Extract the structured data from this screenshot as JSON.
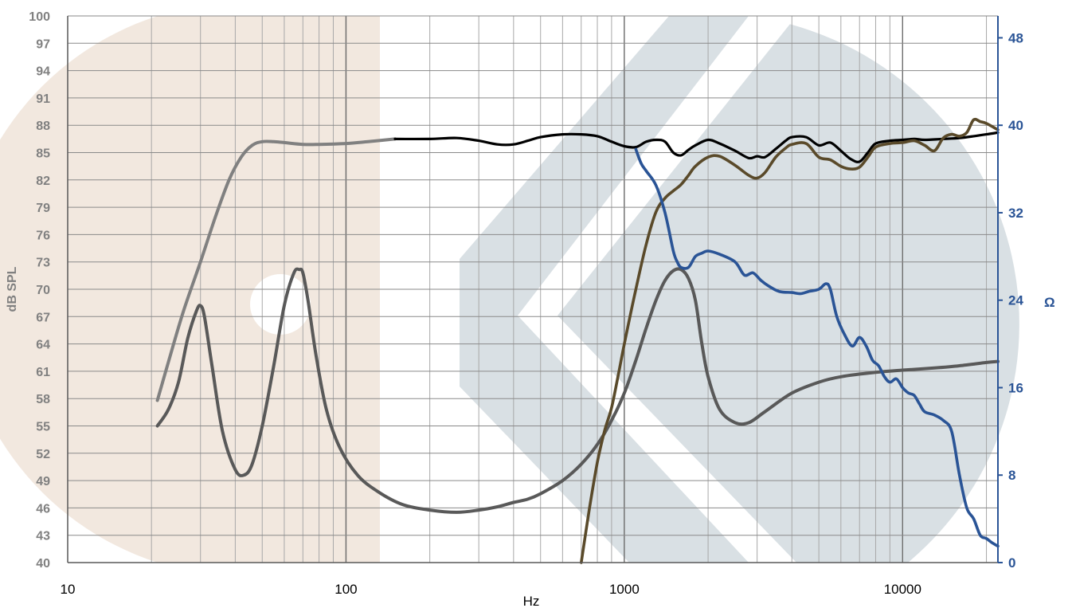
{
  "chart_data": {
    "type": "line",
    "title": "",
    "xlabel": "Hz",
    "ylabel": "dB SPL",
    "y2label": "Ω",
    "xscale": "log",
    "xlim": [
      10,
      22000
    ],
    "ylim": [
      40,
      100
    ],
    "y2lim": [
      0,
      50
    ],
    "x_tick_labels": [
      "10",
      "100",
      "1000",
      "10000"
    ],
    "y_tick_labels": [
      "100",
      "97",
      "94",
      "91",
      "88",
      "85",
      "82",
      "79",
      "76",
      "73",
      "70",
      "67",
      "64",
      "61",
      "58",
      "55",
      "52",
      "49",
      "46",
      "43",
      "40"
    ],
    "y2_tick_labels": [
      "48",
      "40",
      "32",
      "24",
      "16",
      "8",
      "0"
    ],
    "grid": true,
    "legend": "none",
    "colors": {
      "woofer_response": "#808080",
      "woofer_impedance": "#595959",
      "total_response": "#000000",
      "tweeter_response": "#5a4a2a",
      "tweeter_impedance": "#2a5496",
      "watermark_left": "#f2e8df",
      "watermark_right": "#d9e0e4"
    },
    "series": [
      {
        "axis": "left",
        "x": [
          21,
          23,
          26,
          30,
          34,
          38,
          42,
          46,
          50,
          55,
          60,
          70,
          80,
          100,
          120,
          150
        ],
        "y": [
          57.8,
          62,
          67.5,
          73,
          78,
          82,
          84.5,
          85.8,
          86.2,
          86.2,
          86.1,
          85.9,
          85.9,
          86,
          86.2,
          86.5
        ]
      },
      {
        "axis": "right",
        "x": [
          21,
          23,
          25,
          27,
          29,
          30,
          31,
          33,
          36,
          40,
          43,
          46,
          50,
          55,
          60,
          65,
          68,
          70,
          73,
          78,
          85,
          95,
          110,
          130,
          160,
          200,
          250,
          300,
          350,
          400,
          450,
          500,
          600,
          700,
          800,
          900,
          1000,
          1100,
          1200,
          1300,
          1400,
          1500,
          1600,
          1700,
          1800,
          1900,
          2000,
          2200,
          2500,
          2800,
          3200,
          4000,
          5000,
          6000,
          8000,
          10000,
          13000,
          16000,
          20000,
          22000
        ],
        "y": [
          12.5,
          14,
          16.5,
          20.5,
          23,
          23.5,
          22.5,
          18,
          12,
          8.5,
          8,
          9,
          12.5,
          18,
          23.5,
          26.5,
          26.8,
          26.5,
          24,
          19,
          14,
          10.5,
          8,
          6.5,
          5.3,
          4.8,
          4.6,
          4.8,
          5.1,
          5.5,
          5.8,
          6.3,
          7.5,
          9,
          10.8,
          13,
          15.5,
          18.5,
          21.5,
          24,
          25.8,
          26.7,
          26.8,
          26,
          24,
          20,
          17,
          14,
          12.8,
          12.8,
          13.8,
          15.5,
          16.5,
          17,
          17.4,
          17.6,
          17.8,
          18,
          18.3,
          18.4
        ]
      },
      {
        "axis": "left",
        "x": [
          150,
          200,
          250,
          300,
          350,
          400,
          450,
          500,
          600,
          700,
          800,
          900,
          1000,
          1100,
          1200,
          1300,
          1400,
          1500,
          1600,
          1700,
          1800,
          2000,
          2200,
          2500,
          2800,
          3000,
          3200,
          3500,
          3800,
          4000,
          4500,
          5000,
          5500,
          6000,
          6500,
          7000,
          7500,
          8000,
          9000,
          10000,
          11000,
          12000,
          14000,
          16000,
          18000,
          20000,
          22000
        ],
        "y": [
          86.5,
          86.5,
          86.6,
          86.3,
          85.9,
          85.9,
          86.3,
          86.7,
          87,
          87,
          86.8,
          86.2,
          85.7,
          85.6,
          86.2,
          86.4,
          86.2,
          85,
          84.7,
          85.3,
          85.8,
          86.4,
          86,
          85.2,
          84.4,
          84.6,
          84.5,
          85.4,
          86.3,
          86.7,
          86.7,
          85.8,
          86.1,
          85.2,
          84.3,
          84,
          85,
          86,
          86.3,
          86.4,
          86.5,
          86.4,
          86.5,
          86.6,
          86.8,
          87,
          87.2
        ]
      },
      {
        "axis": "left",
        "x": [
          700,
          750,
          800,
          850,
          900,
          950,
          1000,
          1100,
          1200,
          1300,
          1400,
          1500,
          1600,
          1700,
          1800,
          2000,
          2200,
          2500,
          2800,
          3000,
          3200,
          3500,
          3800,
          4000,
          4500,
          5000,
          5500,
          6000,
          6500,
          7000,
          7500,
          8000,
          9000,
          10000,
          11000,
          12000,
          13000,
          14000,
          15000,
          16000,
          17000,
          18000,
          19000,
          20000,
          22000
        ],
        "y": [
          40,
          46,
          51,
          54.5,
          57,
          60.5,
          64,
          70,
          75,
          78.5,
          80,
          80.8,
          81.5,
          82.5,
          83.5,
          84.5,
          84.6,
          83.6,
          82.5,
          82.2,
          82.8,
          84.5,
          85.5,
          85.9,
          86,
          84.5,
          84.2,
          83.5,
          83.2,
          83.4,
          84.5,
          85.6,
          86,
          86.1,
          86.3,
          85.8,
          85.2,
          86.6,
          87,
          86.8,
          87.2,
          88.6,
          88.4,
          88.2,
          87.5
        ]
      },
      {
        "axis": "right",
        "x": [
          1100,
          1150,
          1200,
          1300,
          1400,
          1500,
          1550,
          1600,
          1700,
          1800,
          1900,
          2000,
          2200,
          2500,
          2700,
          2900,
          3100,
          3300,
          3600,
          4000,
          4300,
          4600,
          5000,
          5300,
          5500,
          5800,
          6200,
          6600,
          7000,
          7400,
          7800,
          8200,
          8600,
          9000,
          9500,
          10000,
          10500,
          11000,
          11500,
          12000,
          13000,
          14000,
          15000,
          16000,
          17000,
          18000,
          19000,
          20000,
          21000,
          22000
        ],
        "y": [
          37.8,
          36.5,
          35.8,
          34.5,
          32,
          28.5,
          27.5,
          27,
          27,
          28,
          28.3,
          28.5,
          28.2,
          27.5,
          26.3,
          26.5,
          25.8,
          25.3,
          24.8,
          24.7,
          24.6,
          24.8,
          25,
          25.5,
          25,
          22.5,
          20.8,
          19.8,
          20.6,
          19.8,
          18.5,
          18,
          17,
          16.5,
          16.8,
          16,
          15.5,
          15.3,
          14.5,
          13.8,
          13.5,
          13,
          12,
          8,
          5,
          4,
          2.5,
          2.2,
          1.8,
          1.5
        ]
      }
    ]
  }
}
